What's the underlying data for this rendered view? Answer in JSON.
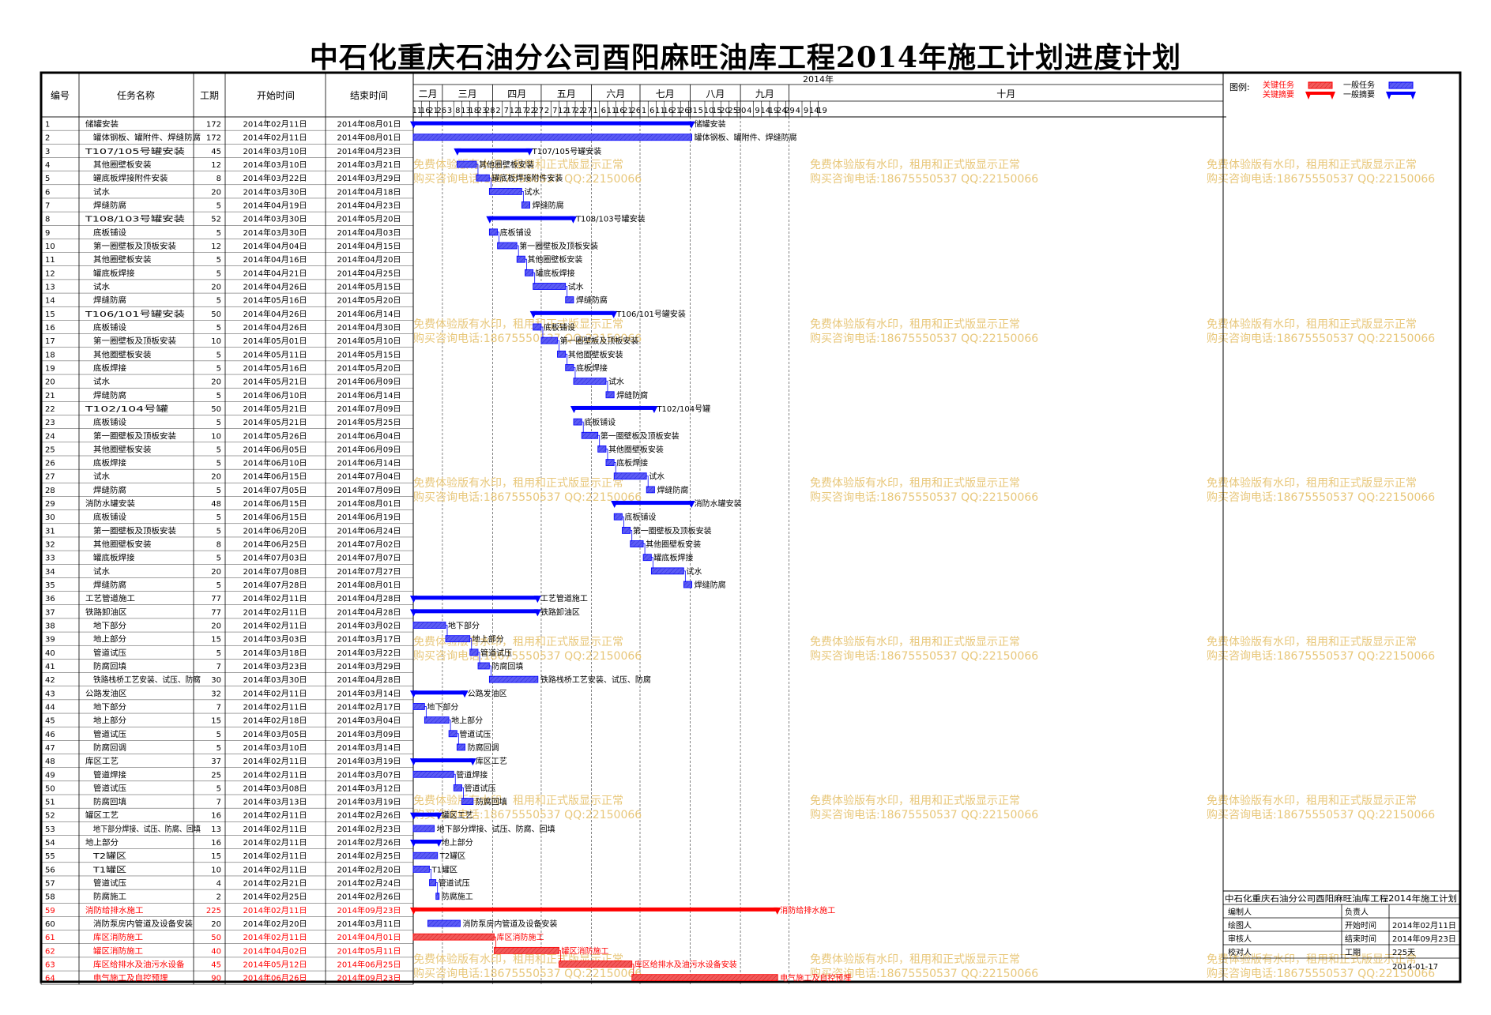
{
  "title": "中石化重庆石油分公司酉阳麻旺油库工程2014年施工计划进度计划",
  "headers": {
    "id": "编号",
    "name": "任务名称",
    "dur": "工期",
    "start": "开始时间",
    "end": "结束时间",
    "year": "2014年"
  },
  "months": [
    {
      "label": "二月",
      "days": [
        "11",
        "16",
        "21",
        "26"
      ]
    },
    {
      "label": "三月",
      "days": [
        "3",
        "8",
        "13",
        "18",
        "23",
        "28"
      ]
    },
    {
      "label": "四月",
      "days": [
        "2",
        "7",
        "12",
        "17",
        "22",
        "27"
      ]
    },
    {
      "label": "五月",
      "days": [
        "2",
        "7",
        "12",
        "17",
        "22",
        "27"
      ]
    },
    {
      "label": "六月",
      "days": [
        "1",
        "6",
        "11",
        "16",
        "21",
        "26"
      ]
    },
    {
      "label": "七月",
      "days": [
        "1",
        "6",
        "11",
        "16",
        "21",
        "26",
        "31"
      ]
    },
    {
      "label": "八月",
      "days": [
        "5",
        "10",
        "15",
        "20",
        "25",
        "30"
      ]
    },
    {
      "label": "九月",
      "days": [
        "4",
        "9",
        "14",
        "19",
        "24",
        "29"
      ]
    },
    {
      "label": "十月",
      "days": [
        "4",
        "9",
        "14",
        "19"
      ]
    }
  ],
  "legend": {
    "title": "图例:",
    "critical_task": "关键任务",
    "critical_summary": "关键摘要",
    "normal_task": "一般任务",
    "normal_summary": "一般摘要",
    "critical_color": "#ff0000",
    "normal_color": "#0000ff"
  },
  "watermark": [
    "免费体验版有水印，租用和正式版显示正常",
    "购买咨询电话:18675550537 QQ:22150066"
  ],
  "info": {
    "project": "中石化重庆石油分公司酉阳麻旺油库工程2014年施工计划",
    "rows": [
      {
        "label": "编制人",
        "label2": "负责人",
        "value2": ""
      },
      {
        "label": "绘图人",
        "label2": "开始时间",
        "value2": "2014年02月11日"
      },
      {
        "label": "审核人",
        "label2": "结束时间",
        "value2": "2014年09月23日"
      },
      {
        "label": "校对人",
        "label2": "工期",
        "value2": "225天"
      }
    ],
    "date": "2014-01-17"
  },
  "chart_data": {
    "type": "gantt",
    "x_range": [
      "2014-02-11",
      "2014-10-19"
    ],
    "tasks": [
      {
        "id": "1",
        "name": "储罐安装",
        "dur": 172,
        "start": "2014年02月11日",
        "end": "2014年08月01日",
        "s": "2014-02-11",
        "e": "2014-08-01",
        "type": "summary",
        "crit": false,
        "label": "储罐安装"
      },
      {
        "id": "2",
        "name": "罐体钢板、罐附件、焊缝防腐",
        "dur": 172,
        "start": "2014年02月11日",
        "end": "2014年08月01日",
        "s": "2014-02-11",
        "e": "2014-08-01",
        "type": "task",
        "crit": false,
        "label": "罐体钢板、罐附件、焊缝防腐"
      },
      {
        "id": "3",
        "name": "T107/105号罐安装",
        "dur": 45,
        "start": "2014年03月10日",
        "end": "2014年04月23日",
        "s": "2014-03-10",
        "e": "2014-04-23",
        "type": "summary",
        "crit": false,
        "label": "T107/105号罐安装"
      },
      {
        "id": "4",
        "name": "其他圈壁板安装",
        "dur": 12,
        "start": "2014年03月10日",
        "end": "2014年03月21日",
        "s": "2014-03-10",
        "e": "2014-03-21",
        "type": "task",
        "crit": false,
        "label": "其他圈壁板安装"
      },
      {
        "id": "5",
        "name": "罐底板焊接附件安装",
        "dur": 8,
        "start": "2014年03月22日",
        "end": "2014年03月29日",
        "s": "2014-03-22",
        "e": "2014-03-29",
        "type": "task",
        "crit": false,
        "label": "罐底板焊接附件安装"
      },
      {
        "id": "6",
        "name": "试水",
        "dur": 20,
        "start": "2014年03月30日",
        "end": "2014年04月18日",
        "s": "2014-03-30",
        "e": "2014-04-18",
        "type": "task",
        "crit": false,
        "label": "试水"
      },
      {
        "id": "7",
        "name": "焊缝防腐",
        "dur": 5,
        "start": "2014年04月19日",
        "end": "2014年04月23日",
        "s": "2014-04-19",
        "e": "2014-04-23",
        "type": "task",
        "crit": false,
        "label": "焊缝防腐"
      },
      {
        "id": "8",
        "name": "T108/103号罐安装",
        "dur": 52,
        "start": "2014年03月30日",
        "end": "2014年05月20日",
        "s": "2014-03-30",
        "e": "2014-05-20",
        "type": "summary",
        "crit": false,
        "label": "T108/103号罐安装"
      },
      {
        "id": "9",
        "name": "底板铺设",
        "dur": 5,
        "start": "2014年03月30日",
        "end": "2014年04月03日",
        "s": "2014-03-30",
        "e": "2014-04-03",
        "type": "task",
        "crit": false,
        "label": "底板铺设"
      },
      {
        "id": "10",
        "name": "第一圈壁板及顶板安装",
        "dur": 12,
        "start": "2014年04月04日",
        "end": "2014年04月15日",
        "s": "2014-04-04",
        "e": "2014-04-15",
        "type": "task",
        "crit": false,
        "label": "第一圈壁板及顶板安装"
      },
      {
        "id": "11",
        "name": "其他圈壁板安装",
        "dur": 5,
        "start": "2014年04月16日",
        "end": "2014年04月20日",
        "s": "2014-04-16",
        "e": "2014-04-20",
        "type": "task",
        "crit": false,
        "label": "其他圈壁板安装"
      },
      {
        "id": "12",
        "name": "罐底板焊接",
        "dur": 5,
        "start": "2014年04月21日",
        "end": "2014年04月25日",
        "s": "2014-04-21",
        "e": "2014-04-25",
        "type": "task",
        "crit": false,
        "label": "罐底板焊接"
      },
      {
        "id": "13",
        "name": "试水",
        "dur": 20,
        "start": "2014年04月26日",
        "end": "2014年05月15日",
        "s": "2014-04-26",
        "e": "2014-05-15",
        "type": "task",
        "crit": false,
        "label": "试水"
      },
      {
        "id": "14",
        "name": "焊缝防腐",
        "dur": 5,
        "start": "2014年05月16日",
        "end": "2014年05月20日",
        "s": "2014-05-16",
        "e": "2014-05-20",
        "type": "task",
        "crit": false,
        "label": "焊缝防腐"
      },
      {
        "id": "15",
        "name": "T106/101号罐安装",
        "dur": 50,
        "start": "2014年04月26日",
        "end": "2014年06月14日",
        "s": "2014-04-26",
        "e": "2014-06-14",
        "type": "summary",
        "crit": false,
        "label": "T106/101号罐安装"
      },
      {
        "id": "16",
        "name": "底板铺设",
        "dur": 5,
        "start": "2014年04月26日",
        "end": "2014年04月30日",
        "s": "2014-04-26",
        "e": "2014-04-30",
        "type": "task",
        "crit": false,
        "label": "底板铺设"
      },
      {
        "id": "17",
        "name": "第一圈壁板及顶板安装",
        "dur": 10,
        "start": "2014年05月01日",
        "end": "2014年05月10日",
        "s": "2014-05-01",
        "e": "2014-05-10",
        "type": "task",
        "crit": false,
        "label": "第一圈壁板及顶板安装"
      },
      {
        "id": "18",
        "name": "其他圈壁板安装",
        "dur": 5,
        "start": "2014年05月11日",
        "end": "2014年05月15日",
        "s": "2014-05-11",
        "e": "2014-05-15",
        "type": "task",
        "crit": false,
        "label": "其他圈壁板安装"
      },
      {
        "id": "19",
        "name": "底板焊接",
        "dur": 5,
        "start": "2014年05月16日",
        "end": "2014年05月20日",
        "s": "2014-05-16",
        "e": "2014-05-20",
        "type": "task",
        "crit": false,
        "label": "底板焊接"
      },
      {
        "id": "20",
        "name": "试水",
        "dur": 20,
        "start": "2014年05月21日",
        "end": "2014年06月09日",
        "s": "2014-05-21",
        "e": "2014-06-09",
        "type": "task",
        "crit": false,
        "label": "试水"
      },
      {
        "id": "21",
        "name": "焊缝防腐",
        "dur": 5,
        "start": "2014年06月10日",
        "end": "2014年06月14日",
        "s": "2014-06-10",
        "e": "2014-06-14",
        "type": "task",
        "crit": false,
        "label": "焊缝防腐"
      },
      {
        "id": "22",
        "name": "T102/104号罐",
        "dur": 50,
        "start": "2014年05月21日",
        "end": "2014年07月09日",
        "s": "2014-05-21",
        "e": "2014-07-09",
        "type": "summary",
        "crit": false,
        "label": "T102/104号罐"
      },
      {
        "id": "23",
        "name": "底板铺设",
        "dur": 5,
        "start": "2014年05月21日",
        "end": "2014年05月25日",
        "s": "2014-05-21",
        "e": "2014-05-25",
        "type": "task",
        "crit": false,
        "label": "底板铺设"
      },
      {
        "id": "24",
        "name": "第一圈壁板及顶板安装",
        "dur": 10,
        "start": "2014年05月26日",
        "end": "2014年06月04日",
        "s": "2014-05-26",
        "e": "2014-06-04",
        "type": "task",
        "crit": false,
        "label": "第一圈壁板及顶板安装"
      },
      {
        "id": "25",
        "name": "其他圈壁板安装",
        "dur": 5,
        "start": "2014年06月05日",
        "end": "2014年06月09日",
        "s": "2014-06-05",
        "e": "2014-06-09",
        "type": "task",
        "crit": false,
        "label": "其他圈壁板安装"
      },
      {
        "id": "26",
        "name": "底板焊接",
        "dur": 5,
        "start": "2014年06月10日",
        "end": "2014年06月14日",
        "s": "2014-06-10",
        "e": "2014-06-14",
        "type": "task",
        "crit": false,
        "label": "底板焊接"
      },
      {
        "id": "27",
        "name": "试水",
        "dur": 20,
        "start": "2014年06月15日",
        "end": "2014年07月04日",
        "s": "2014-06-15",
        "e": "2014-07-04",
        "type": "task",
        "crit": false,
        "label": "试水"
      },
      {
        "id": "28",
        "name": "焊缝防腐",
        "dur": 5,
        "start": "2014年07月05日",
        "end": "2014年07月09日",
        "s": "2014-07-05",
        "e": "2014-07-09",
        "type": "task",
        "crit": false,
        "label": "焊缝防腐"
      },
      {
        "id": "29",
        "name": "消防水罐安装",
        "dur": 48,
        "start": "2014年06月15日",
        "end": "2014年08月01日",
        "s": "2014-06-15",
        "e": "2014-08-01",
        "type": "summary",
        "crit": false,
        "label": "消防水罐安装"
      },
      {
        "id": "30",
        "name": "底板铺设",
        "dur": 5,
        "start": "2014年06月15日",
        "end": "2014年06月19日",
        "s": "2014-06-15",
        "e": "2014-06-19",
        "type": "task",
        "crit": false,
        "label": "底板铺设"
      },
      {
        "id": "31",
        "name": "第一圈壁板及顶板安装",
        "dur": 5,
        "start": "2014年06月20日",
        "end": "2014年06月24日",
        "s": "2014-06-20",
        "e": "2014-06-24",
        "type": "task",
        "crit": false,
        "label": "第一圈壁板及顶板安装"
      },
      {
        "id": "32",
        "name": "其他圈壁板安装",
        "dur": 8,
        "start": "2014年06月25日",
        "end": "2014年07月02日",
        "s": "2014-06-25",
        "e": "2014-07-02",
        "type": "task",
        "crit": false,
        "label": "其他圈壁板安装"
      },
      {
        "id": "33",
        "name": "罐底板焊接",
        "dur": 5,
        "start": "2014年07月03日",
        "end": "2014年07月07日",
        "s": "2014-07-03",
        "e": "2014-07-07",
        "type": "task",
        "crit": false,
        "label": "罐底板焊接"
      },
      {
        "id": "34",
        "name": "试水",
        "dur": 20,
        "start": "2014年07月08日",
        "end": "2014年07月27日",
        "s": "2014-07-08",
        "e": "2014-07-27",
        "type": "task",
        "crit": false,
        "label": "试水"
      },
      {
        "id": "35",
        "name": "焊缝防腐",
        "dur": 5,
        "start": "2014年07月28日",
        "end": "2014年08月01日",
        "s": "2014-07-28",
        "e": "2014-08-01",
        "type": "task",
        "crit": false,
        "label": "焊缝防腐"
      },
      {
        "id": "36",
        "name": "工艺管道施工",
        "dur": 77,
        "start": "2014年02月11日",
        "end": "2014年04月28日",
        "s": "2014-02-11",
        "e": "2014-04-28",
        "type": "summary",
        "crit": false,
        "label": "工艺管道施工"
      },
      {
        "id": "37",
        "name": "铁路卸油区",
        "dur": 77,
        "start": "2014年02月11日",
        "end": "2014年04月28日",
        "s": "2014-02-11",
        "e": "2014-04-28",
        "type": "summary",
        "crit": false,
        "label": "铁路卸油区"
      },
      {
        "id": "38",
        "name": "地下部分",
        "dur": 20,
        "start": "2014年02月11日",
        "end": "2014年03月02日",
        "s": "2014-02-11",
        "e": "2014-03-02",
        "type": "task",
        "crit": false,
        "label": "地下部分"
      },
      {
        "id": "39",
        "name": "地上部分",
        "dur": 15,
        "start": "2014年03月03日",
        "end": "2014年03月17日",
        "s": "2014-03-03",
        "e": "2014-03-17",
        "type": "task",
        "crit": false,
        "label": "地上部分"
      },
      {
        "id": "40",
        "name": "管道试压",
        "dur": 5,
        "start": "2014年03月18日",
        "end": "2014年03月22日",
        "s": "2014-03-18",
        "e": "2014-03-22",
        "type": "task",
        "crit": false,
        "label": "管道试压"
      },
      {
        "id": "41",
        "name": "防腐回填",
        "dur": 7,
        "start": "2014年03月23日",
        "end": "2014年03月29日",
        "s": "2014-03-23",
        "e": "2014-03-29",
        "type": "task",
        "crit": false,
        "label": "防腐回填"
      },
      {
        "id": "42",
        "name": "铁路栈桥工艺安装、试压、防腐",
        "dur": 30,
        "start": "2014年03月30日",
        "end": "2014年04月28日",
        "s": "2014-03-30",
        "e": "2014-04-28",
        "type": "task",
        "crit": false,
        "label": "铁路栈桥工艺安装、试压、防腐"
      },
      {
        "id": "43",
        "name": "公路发油区",
        "dur": 32,
        "start": "2014年02月11日",
        "end": "2014年03月14日",
        "s": "2014-02-11",
        "e": "2014-03-14",
        "type": "summary",
        "crit": false,
        "label": "公路发油区"
      },
      {
        "id": "44",
        "name": "地下部分",
        "dur": 7,
        "start": "2014年02月11日",
        "end": "2014年02月17日",
        "s": "2014-02-11",
        "e": "2014-02-17",
        "type": "task",
        "crit": false,
        "label": "地下部分"
      },
      {
        "id": "45",
        "name": "地上部分",
        "dur": 15,
        "start": "2014年02月18日",
        "end": "2014年03月04日",
        "s": "2014-02-18",
        "e": "2014-03-04",
        "type": "task",
        "crit": false,
        "label": "地上部分"
      },
      {
        "id": "46",
        "name": "管道试压",
        "dur": 5,
        "start": "2014年03月05日",
        "end": "2014年03月09日",
        "s": "2014-03-05",
        "e": "2014-03-09",
        "type": "task",
        "crit": false,
        "label": "管道试压"
      },
      {
        "id": "47",
        "name": "防腐回调",
        "dur": 5,
        "start": "2014年03月10日",
        "end": "2014年03月14日",
        "s": "2014-03-10",
        "e": "2014-03-14",
        "type": "task",
        "crit": false,
        "label": "防腐回调"
      },
      {
        "id": "48",
        "name": "库区工艺",
        "dur": 37,
        "start": "2014年02月11日",
        "end": "2014年03月19日",
        "s": "2014-02-11",
        "e": "2014-03-19",
        "type": "summary",
        "crit": false,
        "label": "库区工艺"
      },
      {
        "id": "49",
        "name": "管道焊接",
        "dur": 25,
        "start": "2014年02月11日",
        "end": "2014年03月07日",
        "s": "2014-02-11",
        "e": "2014-03-07",
        "type": "task",
        "crit": false,
        "label": "管道焊接"
      },
      {
        "id": "50",
        "name": "管道试压",
        "dur": 5,
        "start": "2014年03月08日",
        "end": "2014年03月12日",
        "s": "2014-03-08",
        "e": "2014-03-12",
        "type": "task",
        "crit": false,
        "label": "管道试压"
      },
      {
        "id": "51",
        "name": "防腐回填",
        "dur": 7,
        "start": "2014年03月13日",
        "end": "2014年03月19日",
        "s": "2014-03-13",
        "e": "2014-03-19",
        "type": "task",
        "crit": false,
        "label": "防腐回填"
      },
      {
        "id": "52",
        "name": "罐区工艺",
        "dur": 16,
        "start": "2014年02月11日",
        "end": "2014年02月26日",
        "s": "2014-02-11",
        "e": "2014-02-26",
        "type": "summary",
        "crit": false,
        "label": "罐区工艺"
      },
      {
        "id": "53",
        "name": "地下部分焊接、试压、防腐、回填",
        "dur": 13,
        "start": "2014年02月11日",
        "end": "2014年02月23日",
        "s": "2014-02-11",
        "e": "2014-02-23",
        "type": "task",
        "crit": false,
        "label": "地下部分焊接、试压、防腐、回填"
      },
      {
        "id": "54",
        "name": "地上部分",
        "dur": 16,
        "start": "2014年02月11日",
        "end": "2014年02月26日",
        "s": "2014-02-11",
        "e": "2014-02-26",
        "type": "summary",
        "crit": false,
        "label": "地上部分"
      },
      {
        "id": "55",
        "name": "T2罐区",
        "dur": 15,
        "start": "2014年02月11日",
        "end": "2014年02月25日",
        "s": "2014-02-11",
        "e": "2014-02-25",
        "type": "task",
        "crit": false,
        "label": "T2罐区"
      },
      {
        "id": "56",
        "name": "T1罐区",
        "dur": 10,
        "start": "2014年02月11日",
        "end": "2014年02月20日",
        "s": "2014-02-11",
        "e": "2014-02-20",
        "type": "task",
        "crit": false,
        "label": "T1罐区"
      },
      {
        "id": "57",
        "name": "管道试压",
        "dur": 4,
        "start": "2014年02月21日",
        "end": "2014年02月24日",
        "s": "2014-02-21",
        "e": "2014-02-24",
        "type": "task",
        "crit": false,
        "label": "管道试压"
      },
      {
        "id": "58",
        "name": "防腐施工",
        "dur": 2,
        "start": "2014年02月25日",
        "end": "2014年02月26日",
        "s": "2014-02-25",
        "e": "2014-02-26",
        "type": "task",
        "crit": false,
        "label": "防腐施工"
      },
      {
        "id": "59",
        "name": "消防给排水施工",
        "dur": 225,
        "start": "2014年02月11日",
        "end": "2014年09月23日",
        "s": "2014-02-11",
        "e": "2014-09-23",
        "type": "summary",
        "crit": true,
        "label": "消防给排水施工"
      },
      {
        "id": "60",
        "name": "消防泵房内管道及设备安装",
        "dur": 20,
        "start": "2014年02月20日",
        "end": "2014年03月11日",
        "s": "2014-02-20",
        "e": "2014-03-11",
        "type": "task",
        "crit": false,
        "label": "消防泵房内管道及设备安装"
      },
      {
        "id": "61",
        "name": "库区消防施工",
        "dur": 50,
        "start": "2014年02月11日",
        "end": "2014年04月01日",
        "s": "2014-02-11",
        "e": "2014-04-01",
        "type": "task",
        "crit": true,
        "label": "库区消防施工"
      },
      {
        "id": "62",
        "name": "罐区消防施工",
        "dur": 40,
        "start": "2014年04月02日",
        "end": "2014年05月11日",
        "s": "2014-04-02",
        "e": "2014-05-11",
        "type": "task",
        "crit": true,
        "label": "罐区消防施工"
      },
      {
        "id": "63",
        "name": "库区给排水及油污水设备",
        "dur": 45,
        "start": "2014年05月12日",
        "end": "2014年06月25日",
        "s": "2014-05-12",
        "e": "2014-06-25",
        "type": "task",
        "crit": true,
        "label": "库区给排水及油污水设备安装"
      },
      {
        "id": "64",
        "name": "电气施工及自控预埋",
        "dur": 90,
        "start": "2014年06月26日",
        "end": "2014年09月23日",
        "s": "2014-06-26",
        "e": "2014-09-23",
        "type": "task",
        "crit": true,
        "label": "电气施工及自控预埋"
      }
    ]
  }
}
